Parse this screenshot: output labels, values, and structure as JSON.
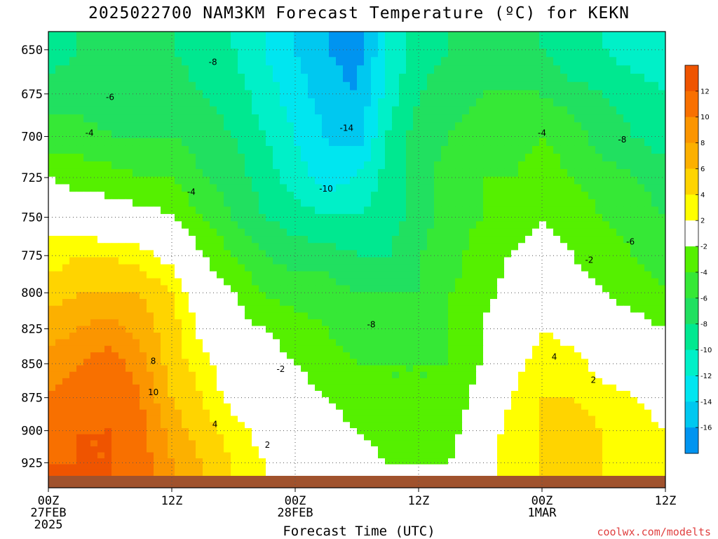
{
  "chart_data": {
    "type": "heatmap",
    "title": "2025022700 NAM3KM Forecast Temperature (ºC) for KEKN",
    "xlabel": "Forecast Time (UTC)",
    "ylabel": "",
    "credit": "coolwx.com/modelts",
    "x_range_hours": [
      0,
      60
    ],
    "y_range_hpa": [
      640,
      945
    ],
    "y_scale": "log-pressure",
    "x_ticks": [
      {
        "hour": 0,
        "lines": [
          "00Z",
          "27FEB",
          "2025"
        ]
      },
      {
        "hour": 12,
        "lines": [
          "12Z"
        ]
      },
      {
        "hour": 24,
        "lines": [
          "00Z",
          "28FEB"
        ]
      },
      {
        "hour": 36,
        "lines": [
          "12Z"
        ]
      },
      {
        "hour": 48,
        "lines": [
          "00Z",
          "1MAR"
        ]
      },
      {
        "hour": 60,
        "lines": [
          "12Z"
        ]
      }
    ],
    "y_ticks": [
      650,
      675,
      700,
      725,
      750,
      775,
      800,
      825,
      850,
      875,
      900,
      925
    ],
    "grid": true,
    "colorbar": {
      "placement": "right",
      "bins": [
        {
          "min": 12,
          "max": 14,
          "color": "#ef5400"
        },
        {
          "min": 10,
          "max": 12,
          "color": "#f87000"
        },
        {
          "min": 8,
          "max": 10,
          "color": "#fb9500"
        },
        {
          "min": 6,
          "max": 8,
          "color": "#fcb000"
        },
        {
          "min": 4,
          "max": 6,
          "color": "#ffd400"
        },
        {
          "min": 2,
          "max": 4,
          "color": "#ffff00"
        },
        {
          "min": -2,
          "max": 2,
          "color": "#ffffff"
        },
        {
          "min": -4,
          "max": -2,
          "color": "#55f000"
        },
        {
          "min": -6,
          "max": -4,
          "color": "#36e836"
        },
        {
          "min": -8,
          "max": -6,
          "color": "#21e060"
        },
        {
          "min": -10,
          "max": -8,
          "color": "#00e890"
        },
        {
          "min": -12,
          "max": -10,
          "color": "#00f0c8"
        },
        {
          "min": -14,
          "max": -12,
          "color": "#00e6f0"
        },
        {
          "min": -16,
          "max": -14,
          "color": "#00c8f0"
        },
        {
          "min": -18,
          "max": -16,
          "color": "#0094f0"
        }
      ],
      "tick_labels": [
        12,
        10,
        8,
        6,
        4,
        2,
        -2,
        -4,
        -6,
        -8,
        -10,
        -12,
        -14,
        -16
      ]
    },
    "contour_labels": [
      {
        "text": "-8",
        "hour": 16.0,
        "hpa": 657
      },
      {
        "text": "-6",
        "hour": 6.0,
        "hpa": 677
      },
      {
        "text": "-4",
        "hour": 4.0,
        "hpa": 698
      },
      {
        "text": "-14",
        "hour": 29.0,
        "hpa": 695
      },
      {
        "text": "-10",
        "hour": 27.0,
        "hpa": 732
      },
      {
        "text": "-4",
        "hour": 13.9,
        "hpa": 734
      },
      {
        "text": "-4",
        "hour": 48.0,
        "hpa": 698
      },
      {
        "text": "-8",
        "hour": 55.8,
        "hpa": 702
      },
      {
        "text": "-6",
        "hour": 56.6,
        "hpa": 766
      },
      {
        "text": "-2",
        "hour": 52.6,
        "hpa": 778
      },
      {
        "text": "-8",
        "hour": 31.4,
        "hpa": 822
      },
      {
        "text": "-2",
        "hour": 22.6,
        "hpa": 854
      },
      {
        "text": "8",
        "hour": 10.2,
        "hpa": 848
      },
      {
        "text": "10",
        "hour": 10.2,
        "hpa": 871
      },
      {
        "text": "4",
        "hour": 16.2,
        "hpa": 895
      },
      {
        "text": "2",
        "hour": 21.3,
        "hpa": 911
      },
      {
        "text": "4",
        "hour": 49.2,
        "hpa": 845
      },
      {
        "text": "2",
        "hour": 53.0,
        "hpa": 862
      }
    ],
    "fields": {
      "hours": [
        0,
        3,
        6,
        9,
        12,
        15,
        18,
        21,
        24,
        27,
        30,
        33,
        36,
        39,
        42,
        45,
        48,
        51,
        54,
        57,
        60
      ],
      "levels_hpa": [
        650,
        675,
        700,
        725,
        750,
        775,
        800,
        825,
        850,
        875,
        900,
        925
      ],
      "temperature_c": [
        [
          -9,
          -8,
          -8,
          -8,
          -8,
          -9,
          -10,
          -12,
          -14,
          -16,
          -17,
          -12,
          -9,
          -8,
          -7,
          -7,
          -8,
          -10,
          -10,
          -11,
          -11
        ],
        [
          -7,
          -7,
          -7,
          -7,
          -7,
          -8,
          -9,
          -11,
          -13,
          -15,
          -16,
          -11,
          -8,
          -7,
          -6,
          -6,
          -6,
          -7,
          -8,
          -9,
          -10
        ],
        [
          -5,
          -5,
          -6,
          -6,
          -6,
          -7,
          -8,
          -10,
          -12,
          -14,
          -15,
          -10,
          -7,
          -6,
          -5,
          -5,
          -4,
          -5,
          -7,
          -8,
          -9
        ],
        [
          -2,
          -3,
          -3,
          -4,
          -4,
          -6,
          -7,
          -9,
          -11,
          -13,
          -12,
          -9,
          -7,
          -5,
          -4,
          -4,
          -3,
          -4,
          -5,
          -6,
          -7
        ],
        [
          1,
          0,
          -1,
          -1,
          -2,
          -4,
          -6,
          -8,
          -9,
          -10,
          -10,
          -9,
          -7,
          -5,
          -4,
          -3,
          -2,
          -3,
          -4,
          -5,
          -6
        ],
        [
          3,
          4,
          4,
          3,
          1,
          -2,
          -4,
          -6,
          -7,
          -7,
          -8,
          -8,
          -6,
          -5,
          -3,
          -2,
          -1,
          -2,
          -3,
          -4,
          -5
        ],
        [
          5,
          6,
          6,
          6,
          4,
          0,
          -2,
          -4,
          -5,
          -5,
          -6,
          -6,
          -6,
          -4,
          -3,
          -1,
          1,
          -1,
          -2,
          -3,
          -4
        ],
        [
          7,
          8,
          9,
          7,
          5,
          1,
          -1,
          -2,
          -3,
          -4,
          -5,
          -5,
          -5,
          -4,
          -2,
          0,
          2,
          1,
          -1,
          -1,
          -2
        ],
        [
          9,
          10,
          11,
          9,
          5,
          3,
          0,
          -1,
          -2,
          -3,
          -4,
          -4,
          -4,
          -4,
          -2,
          1,
          3,
          3,
          1,
          0,
          -1
        ],
        [
          10,
          11,
          12,
          10,
          6,
          4,
          1,
          0,
          -1,
          -2,
          -3,
          -4,
          -4,
          -4,
          -1,
          2,
          4,
          4,
          3,
          2,
          1
        ],
        [
          11,
          12,
          12,
          11,
          7,
          5,
          3,
          1,
          -1,
          -1,
          -2,
          -3,
          -3,
          -3,
          0,
          3,
          4,
          5,
          4,
          3,
          2
        ],
        [
          12,
          12,
          12,
          11,
          8,
          6,
          4,
          2,
          0,
          0,
          -1,
          -2,
          -2,
          -2,
          1,
          3,
          4,
          5,
          4,
          3,
          2
        ]
      ]
    },
    "terrain_color": "#a0522d"
  }
}
